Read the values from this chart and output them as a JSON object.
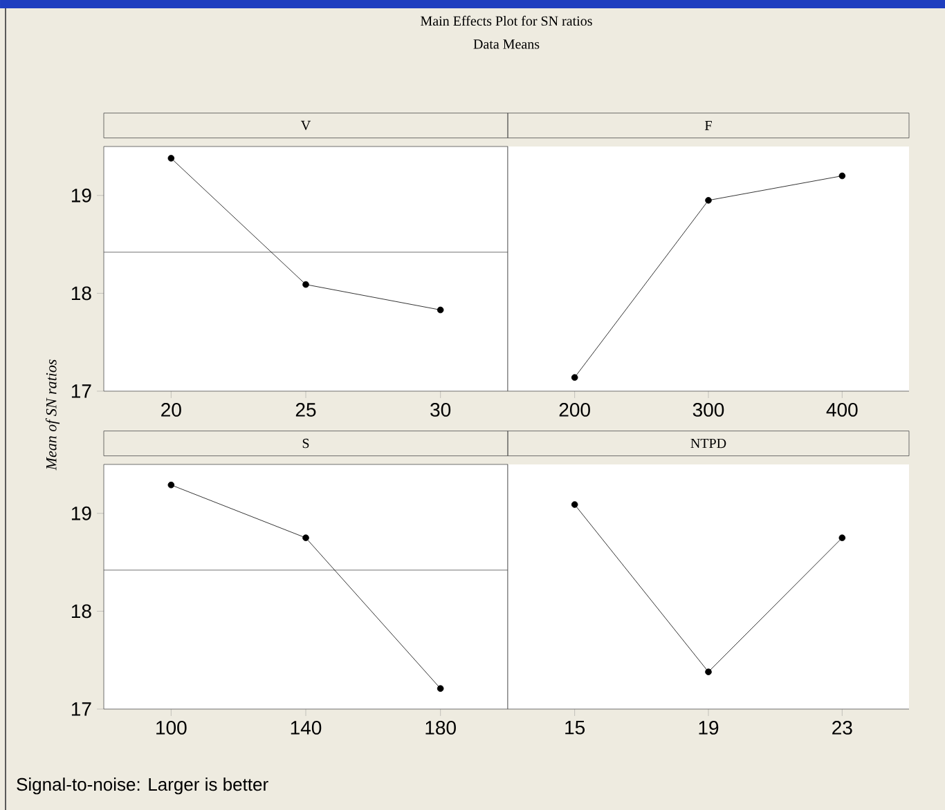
{
  "chart_data": [
    {
      "type": "line",
      "title": "V",
      "categories": [
        "20",
        "25",
        "30"
      ],
      "values": [
        19.38,
        18.09,
        17.83
      ],
      "color": "#000000",
      "ylim": [
        17,
        19.5
      ],
      "yticks": [
        17,
        18,
        19
      ],
      "marker": "circle",
      "ref_lines": [
        {
          "axis": "y",
          "value": 18.42
        }
      ],
      "ylabel": "Mean of SN ratios",
      "annotations": [
        "Main Effects Plot for SN ratios",
        "Data Means"
      ]
    },
    {
      "type": "line",
      "title": "F",
      "categories": [
        "200",
        "300",
        "400"
      ],
      "values": [
        17.14,
        18.95,
        19.2
      ],
      "color": "#000000",
      "ylim": [
        17,
        19.5
      ],
      "yticks": [
        17,
        18,
        19
      ],
      "marker": "circle",
      "tick_labels": "x"
    },
    {
      "type": "line",
      "title": "S",
      "categories": [
        "100",
        "140",
        "180"
      ],
      "values": [
        19.29,
        18.75,
        17.21
      ],
      "color": "#000000",
      "ylim": [
        17,
        19.5
      ],
      "yticks": [
        17,
        18,
        19
      ],
      "marker": "circle",
      "ref_lines": [
        {
          "axis": "y",
          "value": 18.42
        }
      ],
      "annotations": [
        "Signal-to-noise: Larger is better"
      ]
    },
    {
      "type": "line",
      "title": "NTPD",
      "categories": [
        "15",
        "19",
        "23"
      ],
      "values": [
        19.09,
        17.38,
        18.75
      ],
      "color": "#000000",
      "ylim": [
        17,
        19.5
      ],
      "yticks": [
        17,
        18,
        19
      ],
      "marker": "circle",
      "tick_labels": "x"
    }
  ]
}
